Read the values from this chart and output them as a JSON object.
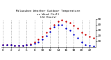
{
  "title_line1": "Milwaukee Weather Outdoor Temperature",
  "title_line2": "vs Wind Chill",
  "title_line3": "(24 Hours)",
  "temp_color": "#cc0000",
  "wind_chill_color": "#0000cc",
  "background_color": "#ffffff",
  "grid_color": "#888888",
  "title_color": "#000000",
  "hours": [
    0,
    1,
    2,
    3,
    4,
    5,
    6,
    7,
    8,
    9,
    10,
    11,
    12,
    13,
    14,
    15,
    16,
    17,
    18,
    19,
    20,
    21,
    22,
    23
  ],
  "temp": [
    4,
    3,
    3,
    2,
    2,
    2,
    3,
    5,
    9,
    13,
    18,
    26,
    33,
    40,
    46,
    48,
    46,
    43,
    39,
    33,
    26,
    22,
    18,
    16
  ],
  "wind_chill": [
    4,
    3,
    3,
    2,
    2,
    2,
    3,
    3,
    6,
    9,
    13,
    20,
    27,
    36,
    40,
    40,
    34,
    30,
    22,
    16,
    8,
    4,
    2,
    1
  ],
  "ylim": [
    0,
    50
  ],
  "yticks": [
    10,
    20,
    30,
    40,
    50
  ],
  "ytick_labels": [
    "10",
    "20",
    "30",
    "40",
    "50"
  ],
  "xtick_positions": [
    0,
    2,
    4,
    6,
    8,
    10,
    12,
    14,
    16,
    18,
    20,
    22
  ],
  "xtick_labels": [
    "0",
    "2",
    "4",
    "6",
    "8",
    "10",
    "12",
    "14",
    "16",
    "18",
    "20",
    "22"
  ],
  "vgrid_positions": [
    0,
    2,
    4,
    6,
    8,
    10,
    12,
    14,
    16,
    18,
    20,
    22
  ]
}
